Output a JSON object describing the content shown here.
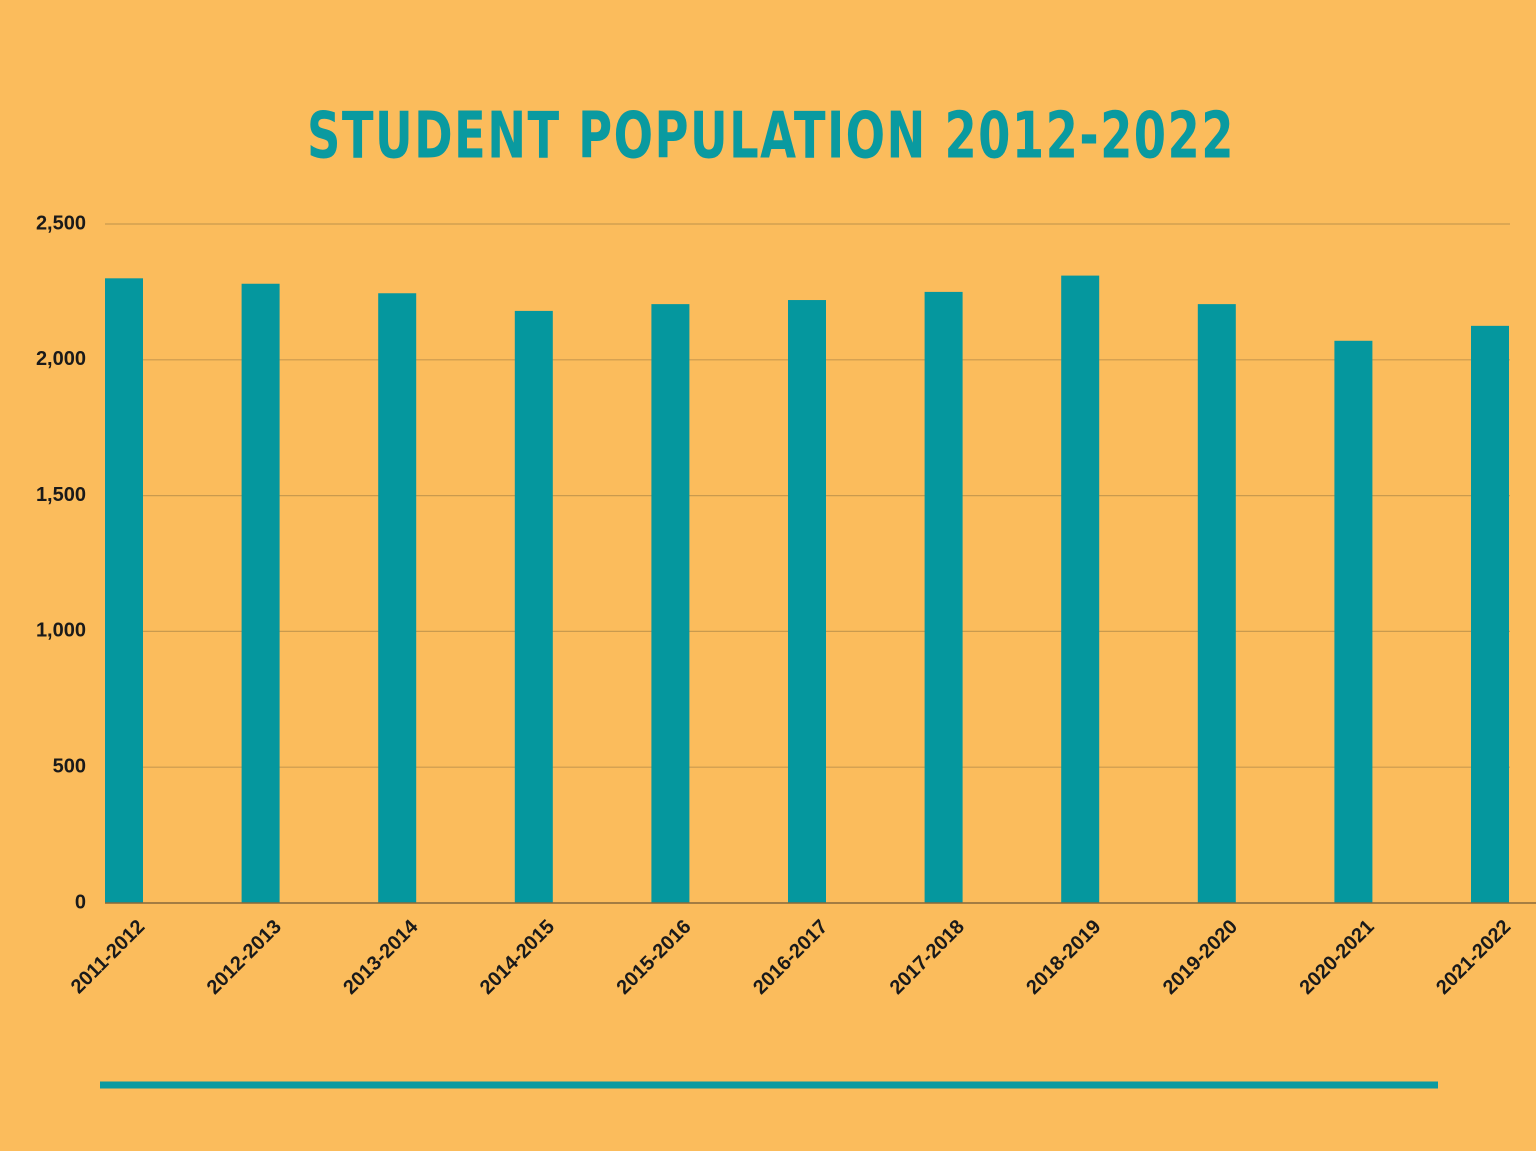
{
  "chart_data": {
    "type": "bar",
    "title": "STUDENT POPULATION 2012-2022",
    "categories": [
      "2011-2012",
      "2012-2013",
      "2013-2014",
      "2014-2015",
      "2015-2016",
      "2016-2017",
      "2017-2018",
      "2018-2019",
      "2019-2020",
      "2020-2021",
      "2021-2022"
    ],
    "values": [
      2300,
      2280,
      2245,
      2180,
      2205,
      2220,
      2250,
      2310,
      2205,
      2070,
      2125
    ],
    "color": "#05979e",
    "ylim": [
      0,
      2500
    ],
    "yticks": [
      0,
      500,
      {
        "value": 1000,
        "label": "1,000"
      },
      {
        "value": 1500,
        "label": "1,500"
      },
      {
        "value": 2000,
        "label": "2,000"
      },
      {
        "value": 2500,
        "label": "2,500"
      }
    ],
    "grid": true
  }
}
